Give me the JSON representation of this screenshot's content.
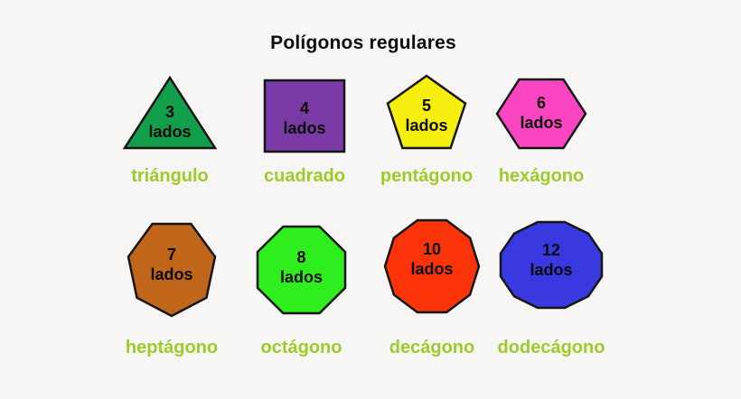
{
  "title": "Polígonos regulares",
  "unit_word": "lados",
  "shapes": [
    {
      "id": "triangle",
      "sides": "3",
      "unit": "lados",
      "label": "triángulo",
      "fill": "#129e4b"
    },
    {
      "id": "square",
      "sides": "4",
      "unit": "lados",
      "label": "cuadrado",
      "fill": "#7a3aa6"
    },
    {
      "id": "pentagon",
      "sides": "5",
      "unit": "lados",
      "label": "pentágono",
      "fill": "#f5ee0f"
    },
    {
      "id": "hexagon",
      "sides": "6",
      "unit": "lados",
      "label": "hexágono",
      "fill": "#f946c0"
    },
    {
      "id": "heptagon",
      "sides": "7",
      "unit": "lados",
      "label": "heptágono",
      "fill": "#c0661b"
    },
    {
      "id": "octagon",
      "sides": "8",
      "unit": "lados",
      "label": "octágono",
      "fill": "#2fee1d"
    },
    {
      "id": "decagon",
      "sides": "10",
      "unit": "lados",
      "label": "decágono",
      "fill": "#fa3408"
    },
    {
      "id": "dodecagon",
      "sides": "12",
      "unit": "lados",
      "label": "dodecágono",
      "fill": "#3939e2"
    }
  ],
  "colors": {
    "background": "#f7f6f5",
    "outline": "#151515",
    "label_text": "#9ccc2a",
    "title_text": "#0d0d0d"
  }
}
